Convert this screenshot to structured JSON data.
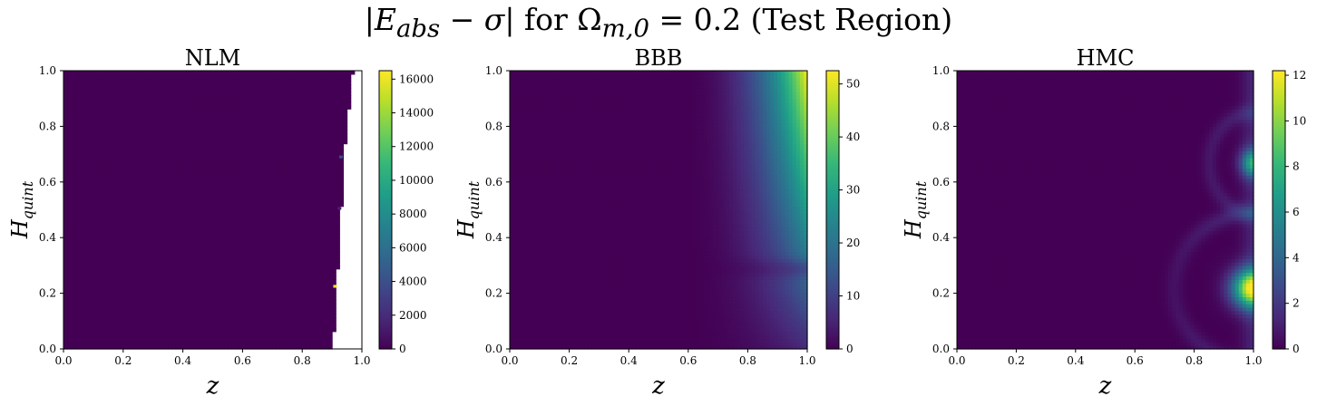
{
  "figure": {
    "title_parts": {
      "abs_open": "|",
      "E": "E",
      "E_sub": "abs",
      "minus": " − ",
      "sigma": "σ",
      "abs_close": "|",
      "for_text": " for ",
      "Omega": "Ω",
      "Omega_sub": "m,0",
      "eq_value": " = 0.2 ",
      "paren_text": "(Test Region)"
    }
  },
  "chart_data": [
    {
      "type": "heatmap",
      "title": "NLM",
      "xlabel": "z",
      "ylabel": "H",
      "ylabel_sub": "quint",
      "xlim": [
        0.0,
        1.0
      ],
      "ylim": [
        0.0,
        1.0
      ],
      "xticks": [
        "0.0",
        "0.2",
        "0.4",
        "0.6",
        "0.8",
        "1.0"
      ],
      "yticks": [
        "0.0",
        "0.2",
        "0.4",
        "0.6",
        "0.8",
        "1.0"
      ],
      "colorbar": {
        "range": [
          0,
          16500
        ],
        "ticks": [
          0,
          2000,
          4000,
          6000,
          8000,
          10000,
          12000,
          14000,
          16000
        ],
        "tick_labels": [
          "0",
          "2000",
          "4000",
          "6000",
          "8000",
          "10000",
          "12000",
          "14000",
          "16000"
        ]
      },
      "colormap": "viridis",
      "field": {
        "description_values": "near 0 everywhere with missing (white) cells for z above a ragged boundary",
        "missing_boundary": [
          [
            0.0,
            0.9
          ],
          [
            0.1,
            0.91
          ],
          [
            0.2,
            0.91
          ],
          [
            0.3,
            0.92
          ],
          [
            0.4,
            0.93
          ],
          [
            0.5,
            0.93
          ],
          [
            0.6,
            0.94
          ],
          [
            0.7,
            0.94
          ],
          [
            0.8,
            0.95
          ],
          [
            0.9,
            0.96
          ],
          [
            1.0,
            0.97
          ]
        ],
        "hot_spots": [
          {
            "z": 0.91,
            "H": 0.225,
            "value": 16500
          },
          {
            "z": 0.93,
            "H": 0.69,
            "value": 4000
          },
          {
            "z": 0.925,
            "H": 0.505,
            "value": 1500
          }
        ]
      }
    },
    {
      "type": "heatmap",
      "title": "BBB",
      "xlabel": "z",
      "ylabel": "H",
      "ylabel_sub": "quint",
      "xlim": [
        0.0,
        1.0
      ],
      "ylim": [
        0.0,
        1.0
      ],
      "xticks": [
        "0.0",
        "0.2",
        "0.4",
        "0.6",
        "0.8",
        "1.0"
      ],
      "yticks": [
        "0.0",
        "0.2",
        "0.4",
        "0.6",
        "0.8",
        "1.0"
      ],
      "colorbar": {
        "range": [
          0,
          52.5
        ],
        "ticks": [
          0,
          10,
          20,
          30,
          40,
          50
        ],
        "tick_labels": [
          "0",
          "10",
          "20",
          "30",
          "40",
          "50"
        ]
      },
      "colormap": "viridis",
      "field": {
        "description_values": "grows with z and H; maximum about 52 at z=1, H=1",
        "max_value": 52
      }
    },
    {
      "type": "heatmap",
      "title": "HMC",
      "xlabel": "z",
      "ylabel": "H",
      "ylabel_sub": "quint",
      "xlim": [
        0.0,
        1.0
      ],
      "ylim": [
        0.0,
        1.0
      ],
      "xticks": [
        "0.0",
        "0.2",
        "0.4",
        "0.6",
        "0.8",
        "1.0"
      ],
      "yticks": [
        "0.0",
        "0.2",
        "0.4",
        "0.6",
        "0.8",
        "1.0"
      ],
      "colorbar": {
        "range": [
          0,
          12.2
        ],
        "ticks": [
          0,
          2,
          4,
          6,
          8,
          10,
          12
        ],
        "tick_labels": [
          "0",
          "2",
          "4",
          "6",
          "8",
          "10",
          "12"
        ]
      },
      "colormap": "viridis",
      "field": {
        "description_values": "low except arcs near z=1; peaks about 12 at H~0.22 and about 7 at H~0.67",
        "peaks": [
          {
            "z": 1.0,
            "H": 0.22,
            "value": 12
          },
          {
            "z": 1.0,
            "H": 0.67,
            "value": 7
          }
        ]
      }
    }
  ]
}
